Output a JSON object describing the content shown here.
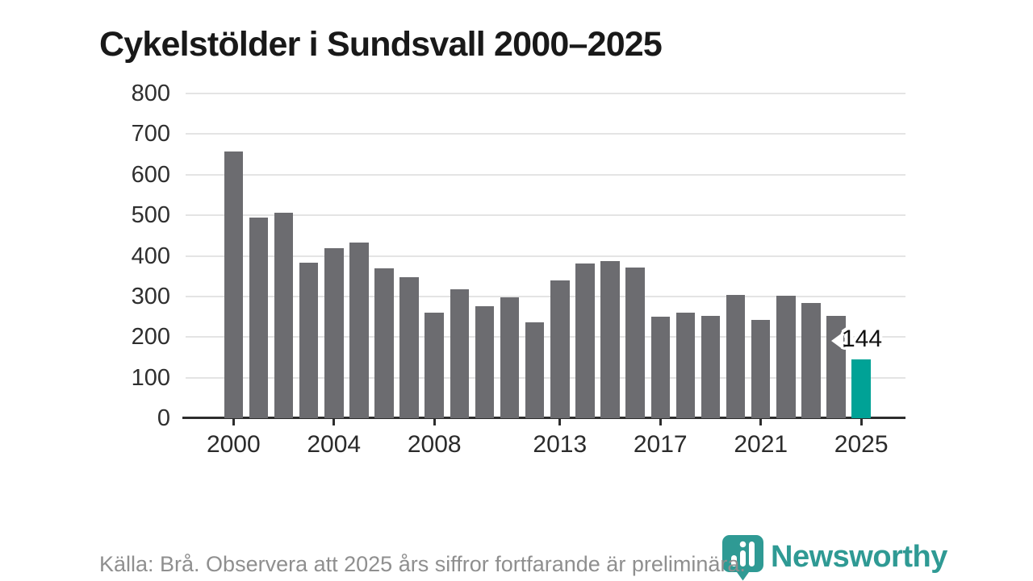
{
  "title": "Cykelstölder i Sundsvall 2000–2025",
  "chart_data": {
    "type": "bar",
    "title": "Cykelstölder i Sundsvall 2000–2025",
    "x": [
      2000,
      2001,
      2002,
      2003,
      2004,
      2005,
      2006,
      2007,
      2008,
      2009,
      2010,
      2011,
      2012,
      2013,
      2014,
      2015,
      2016,
      2017,
      2018,
      2019,
      2020,
      2021,
      2022,
      2023,
      2024,
      2025
    ],
    "values": [
      658,
      494,
      507,
      384,
      419,
      433,
      370,
      347,
      261,
      318,
      276,
      298,
      237,
      340,
      381,
      388,
      371,
      250,
      261,
      252,
      303,
      243,
      302,
      284,
      253,
      144
    ],
    "xlabel": "",
    "ylabel": "",
    "ylim": [
      0,
      800
    ],
    "yticks": [
      0,
      100,
      200,
      300,
      400,
      500,
      600,
      700,
      800
    ],
    "xticks": [
      2000,
      2004,
      2008,
      2013,
      2017,
      2021,
      2025
    ],
    "grid": true,
    "legend_position": "none",
    "bar_color": "#6c6c70",
    "highlight_color": "#00a296",
    "highlight_year": 2025,
    "annotation": {
      "year": 2025,
      "label": "144"
    }
  },
  "footer": {
    "source": "Källa: Brå. Observera att 2025 års siffror fortfarande är preliminära.",
    "brand": "Newsworthy"
  },
  "colors": {
    "axis": "#2d2d2d",
    "grid": "#e4e4e4",
    "title_text": "#191919",
    "tick_text": "#2b2b2b",
    "source_text": "#8f8f8f",
    "logo_teal": "#2f9a94"
  },
  "icons": {
    "logo_mark": "newsworthy-pin-barchart-icon"
  }
}
